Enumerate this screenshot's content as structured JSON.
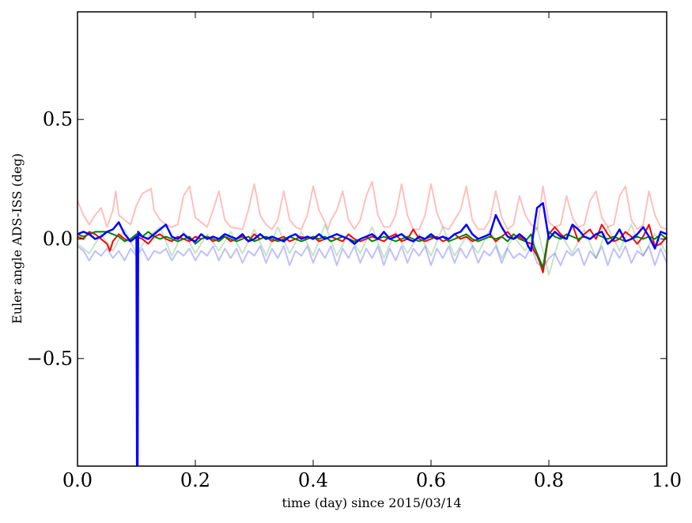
{
  "chart_data": {
    "type": "line",
    "xlabel": "time (day) since 2015/03/14",
    "ylabel": "Euler angle ADS-ISS (deg)",
    "xlim": [
      0.0,
      1.0
    ],
    "ylim": [
      -0.95,
      0.95
    ],
    "x_ticks": [
      "0.0",
      "0.2",
      "0.4",
      "0.6",
      "0.8",
      "1.0"
    ],
    "y_ticks": [
      "−0.5",
      "0.0",
      "0.5"
    ],
    "x_tick_values": [
      0.0,
      0.2,
      0.4,
      0.6,
      0.8,
      1.0
    ],
    "y_tick_values": [
      -0.5,
      0.0,
      0.5
    ],
    "grid": false,
    "series": [
      {
        "color": "#ff0000",
        "opacity": 0.25,
        "linewidth": 2,
        "x": [
          0.0,
          0.01,
          0.02,
          0.03,
          0.04,
          0.05,
          0.06,
          0.065,
          0.07,
          0.08,
          0.09,
          0.1,
          0.11,
          0.125,
          0.13,
          0.14,
          0.15,
          0.16,
          0.17,
          0.18,
          0.19,
          0.2,
          0.21,
          0.22,
          0.23,
          0.24,
          0.25,
          0.26,
          0.28,
          0.29,
          0.3,
          0.31,
          0.32,
          0.33,
          0.34,
          0.35,
          0.36,
          0.37,
          0.38,
          0.39,
          0.4,
          0.41,
          0.42,
          0.425,
          0.43,
          0.44,
          0.45,
          0.46,
          0.47,
          0.48,
          0.49,
          0.5,
          0.51,
          0.52,
          0.53,
          0.54,
          0.55,
          0.56,
          0.57,
          0.58,
          0.59,
          0.6,
          0.61,
          0.62,
          0.63,
          0.64,
          0.65,
          0.66,
          0.67,
          0.68,
          0.69,
          0.7,
          0.71,
          0.72,
          0.73,
          0.74,
          0.75,
          0.76,
          0.77,
          0.78,
          0.79,
          0.8,
          0.81,
          0.82,
          0.83,
          0.84,
          0.85,
          0.86,
          0.87,
          0.88,
          0.89,
          0.9,
          0.91,
          0.92,
          0.93,
          0.94,
          0.95,
          0.96,
          0.97,
          0.98,
          0.99,
          1.0
        ],
        "y": [
          0.16,
          0.1,
          0.06,
          0.1,
          0.13,
          0.05,
          0.12,
          0.2,
          0.1,
          0.08,
          0.06,
          0.14,
          0.19,
          0.21,
          0.12,
          0.08,
          0.06,
          0.05,
          0.06,
          0.18,
          0.22,
          0.09,
          0.07,
          0.05,
          0.12,
          0.2,
          0.08,
          0.05,
          0.04,
          0.12,
          0.23,
          0.1,
          0.06,
          0.04,
          0.08,
          0.2,
          0.08,
          0.05,
          0.04,
          0.1,
          0.22,
          0.12,
          0.07,
          0.04,
          0.08,
          0.12,
          0.2,
          0.08,
          0.04,
          0.08,
          0.18,
          0.24,
          0.1,
          0.05,
          0.05,
          0.1,
          0.23,
          0.1,
          0.04,
          0.04,
          0.1,
          0.23,
          0.11,
          0.05,
          0.04,
          0.08,
          0.12,
          0.22,
          0.08,
          0.04,
          0.04,
          0.08,
          0.2,
          0.09,
          0.04,
          0.06,
          0.18,
          0.1,
          0.06,
          0.04,
          0.22,
          0.07,
          0.05,
          0.06,
          0.18,
          0.09,
          0.05,
          0.06,
          0.16,
          0.2,
          0.09,
          0.05,
          0.06,
          0.18,
          0.22,
          0.08,
          0.04,
          0.06,
          0.2,
          0.1,
          0.05,
          0.04
        ]
      },
      {
        "color": "#008000",
        "opacity": 0.22,
        "linewidth": 2,
        "x": [
          0.0,
          0.02,
          0.04,
          0.06,
          0.08,
          0.1,
          0.12,
          0.14,
          0.16,
          0.18,
          0.2,
          0.22,
          0.24,
          0.26,
          0.28,
          0.3,
          0.32,
          0.34,
          0.36,
          0.38,
          0.4,
          0.42,
          0.44,
          0.46,
          0.48,
          0.5,
          0.52,
          0.54,
          0.56,
          0.58,
          0.6,
          0.62,
          0.64,
          0.66,
          0.68,
          0.7,
          0.72,
          0.74,
          0.76,
          0.78,
          0.8,
          0.82,
          0.84,
          0.86,
          0.88,
          0.9,
          0.92,
          0.94,
          0.96,
          0.98,
          1.0
        ],
        "y": [
          -0.02,
          -0.06,
          0.02,
          -0.05,
          0.04,
          -0.06,
          0.01,
          0.05,
          -0.07,
          0.03,
          -0.06,
          0.02,
          -0.05,
          0.03,
          -0.06,
          0.04,
          -0.07,
          0.05,
          -0.06,
          0.03,
          -0.07,
          0.06,
          -0.07,
          0.02,
          -0.06,
          0.05,
          -0.08,
          0.03,
          -0.06,
          0.02,
          -0.07,
          0.05,
          -0.07,
          0.01,
          -0.06,
          0.04,
          -0.08,
          0.01,
          -0.05,
          0.05,
          -0.15,
          0.02,
          -0.06,
          0.04,
          -0.08,
          0.05,
          -0.05,
          0.06,
          -0.07,
          0.02,
          -0.06
        ]
      },
      {
        "color": "#0000ff",
        "opacity": 0.25,
        "linewidth": 2,
        "x": [
          0.0,
          0.01,
          0.02,
          0.03,
          0.04,
          0.05,
          0.06,
          0.07,
          0.08,
          0.09,
          0.1,
          0.11,
          0.12,
          0.13,
          0.14,
          0.15,
          0.16,
          0.17,
          0.18,
          0.19,
          0.2,
          0.21,
          0.22,
          0.23,
          0.24,
          0.25,
          0.26,
          0.27,
          0.28,
          0.29,
          0.3,
          0.31,
          0.32,
          0.33,
          0.34,
          0.35,
          0.36,
          0.37,
          0.38,
          0.39,
          0.4,
          0.41,
          0.42,
          0.43,
          0.44,
          0.45,
          0.46,
          0.47,
          0.48,
          0.49,
          0.5,
          0.51,
          0.52,
          0.53,
          0.54,
          0.55,
          0.56,
          0.57,
          0.58,
          0.59,
          0.6,
          0.61,
          0.62,
          0.63,
          0.64,
          0.65,
          0.66,
          0.67,
          0.68,
          0.69,
          0.7,
          0.71,
          0.72,
          0.73,
          0.74,
          0.75,
          0.76,
          0.77,
          0.78,
          0.79,
          0.8,
          0.81,
          0.82,
          0.83,
          0.84,
          0.85,
          0.86,
          0.87,
          0.88,
          0.89,
          0.9,
          0.91,
          0.92,
          0.93,
          0.94,
          0.95,
          0.96,
          0.97,
          0.98,
          0.99,
          1.0
        ],
        "y": [
          -0.03,
          -0.05,
          -0.09,
          -0.05,
          -0.07,
          -0.04,
          -0.08,
          -0.05,
          -0.09,
          -0.04,
          -0.07,
          -0.04,
          -0.09,
          -0.05,
          -0.06,
          -0.04,
          -0.09,
          -0.05,
          -0.07,
          -0.04,
          -0.09,
          -0.05,
          -0.07,
          -0.03,
          -0.09,
          -0.04,
          -0.08,
          -0.04,
          -0.1,
          -0.05,
          -0.07,
          -0.03,
          -0.1,
          -0.04,
          -0.08,
          -0.03,
          -0.11,
          -0.05,
          -0.07,
          -0.03,
          -0.1,
          -0.04,
          -0.08,
          -0.03,
          -0.11,
          -0.04,
          -0.08,
          -0.03,
          -0.1,
          -0.04,
          -0.08,
          -0.03,
          -0.11,
          -0.04,
          -0.09,
          -0.03,
          -0.1,
          -0.04,
          -0.07,
          -0.03,
          -0.11,
          -0.04,
          -0.08,
          -0.03,
          -0.1,
          -0.04,
          -0.08,
          -0.03,
          -0.1,
          -0.05,
          -0.07,
          -0.03,
          -0.1,
          -0.04,
          -0.08,
          -0.06,
          -0.08,
          -0.03,
          -0.1,
          -0.12,
          -0.08,
          -0.06,
          -0.11,
          -0.05,
          -0.07,
          -0.04,
          -0.11,
          -0.05,
          -0.08,
          -0.03,
          -0.11,
          -0.04,
          -0.08,
          -0.03,
          -0.1,
          -0.05,
          -0.07,
          -0.03,
          -0.11,
          -0.04,
          -0.1
        ]
      },
      {
        "color": "#ff0000",
        "opacity": 1.0,
        "linewidth": 2,
        "x": [
          0.0,
          0.01,
          0.02,
          0.03,
          0.04,
          0.05,
          0.055,
          0.06,
          0.07,
          0.08,
          0.09,
          0.1,
          0.11,
          0.12,
          0.13,
          0.14,
          0.15,
          0.16,
          0.17,
          0.18,
          0.19,
          0.2,
          0.21,
          0.22,
          0.23,
          0.24,
          0.25,
          0.26,
          0.27,
          0.28,
          0.29,
          0.3,
          0.31,
          0.32,
          0.33,
          0.34,
          0.35,
          0.36,
          0.37,
          0.38,
          0.39,
          0.4,
          0.41,
          0.42,
          0.43,
          0.44,
          0.45,
          0.46,
          0.47,
          0.48,
          0.49,
          0.5,
          0.51,
          0.52,
          0.53,
          0.54,
          0.55,
          0.56,
          0.57,
          0.58,
          0.59,
          0.6,
          0.61,
          0.62,
          0.63,
          0.64,
          0.65,
          0.66,
          0.67,
          0.68,
          0.69,
          0.7,
          0.71,
          0.72,
          0.73,
          0.74,
          0.75,
          0.76,
          0.77,
          0.775,
          0.78,
          0.785,
          0.79,
          0.8,
          0.81,
          0.82,
          0.83,
          0.84,
          0.85,
          0.86,
          0.87,
          0.88,
          0.89,
          0.9,
          0.91,
          0.92,
          0.93,
          0.94,
          0.95,
          0.96,
          0.97,
          0.98,
          0.99,
          1.0
        ],
        "y": [
          0.01,
          0.0,
          0.03,
          0.02,
          0.0,
          -0.02,
          -0.05,
          -0.01,
          0.02,
          0.0,
          -0.01,
          0.01,
          0.0,
          -0.02,
          0.01,
          0.02,
          0.0,
          -0.01,
          0.01,
          0.0,
          -0.01,
          0.01,
          0.0,
          0.01,
          -0.01,
          0.0,
          0.01,
          -0.01,
          0.0,
          0.01,
          -0.01,
          0.02,
          0.0,
          0.01,
          -0.01,
          0.0,
          0.01,
          -0.01,
          0.0,
          0.01,
          0.0,
          0.01,
          -0.01,
          0.0,
          0.01,
          0.0,
          -0.01,
          0.02,
          0.0,
          -0.01,
          0.0,
          0.01,
          0.0,
          -0.01,
          0.01,
          0.02,
          -0.01,
          0.0,
          0.04,
          0.0,
          -0.01,
          0.0,
          0.01,
          -0.01,
          0.0,
          0.02,
          0.0,
          0.01,
          -0.01,
          0.0,
          0.01,
          0.02,
          -0.01,
          0.01,
          0.03,
          0.0,
          0.01,
          -0.01,
          -0.02,
          -0.05,
          -0.07,
          -0.1,
          -0.14,
          0.02,
          0.05,
          0.02,
          0.0,
          0.06,
          -0.01,
          0.02,
          0.04,
          0.0,
          0.06,
          0.02,
          -0.01,
          0.0,
          0.03,
          0.01,
          -0.02,
          0.01,
          0.06,
          -0.03,
          -0.02,
          0.01
        ]
      },
      {
        "color": "#008000",
        "opacity": 1.0,
        "linewidth": 2,
        "x": [
          0.0,
          0.01,
          0.02,
          0.03,
          0.04,
          0.05,
          0.06,
          0.07,
          0.08,
          0.09,
          0.1,
          0.11,
          0.12,
          0.13,
          0.14,
          0.15,
          0.16,
          0.17,
          0.18,
          0.19,
          0.2,
          0.21,
          0.22,
          0.23,
          0.24,
          0.25,
          0.26,
          0.27,
          0.28,
          0.29,
          0.3,
          0.31,
          0.32,
          0.33,
          0.34,
          0.35,
          0.36,
          0.37,
          0.38,
          0.39,
          0.4,
          0.41,
          0.42,
          0.43,
          0.44,
          0.45,
          0.46,
          0.47,
          0.48,
          0.49,
          0.5,
          0.51,
          0.52,
          0.53,
          0.54,
          0.55,
          0.56,
          0.57,
          0.58,
          0.59,
          0.6,
          0.61,
          0.62,
          0.63,
          0.64,
          0.65,
          0.66,
          0.67,
          0.68,
          0.69,
          0.7,
          0.71,
          0.72,
          0.73,
          0.74,
          0.75,
          0.76,
          0.77,
          0.775,
          0.78,
          0.785,
          0.79,
          0.8,
          0.81,
          0.82,
          0.83,
          0.84,
          0.85,
          0.86,
          0.87,
          0.88,
          0.89,
          0.9,
          0.91,
          0.92,
          0.93,
          0.94,
          0.95,
          0.96,
          0.97,
          0.98,
          0.99,
          1.0
        ],
        "y": [
          0.02,
          0.01,
          0.02,
          0.03,
          0.03,
          0.03,
          0.02,
          0.01,
          -0.01,
          0.0,
          0.02,
          0.01,
          0.03,
          0.01,
          0.0,
          0.01,
          0.0,
          -0.01,
          0.0,
          0.01,
          -0.02,
          0.0,
          0.01,
          0.0,
          -0.01,
          0.01,
          0.0,
          -0.01,
          0.0,
          0.01,
          -0.01,
          0.0,
          0.01,
          0.0,
          -0.01,
          0.0,
          0.01,
          0.0,
          -0.01,
          0.0,
          0.01,
          0.0,
          0.01,
          -0.01,
          0.0,
          0.01,
          0.0,
          -0.01,
          0.0,
          0.01,
          -0.01,
          0.0,
          0.01,
          0.0,
          -0.01,
          0.0,
          0.01,
          0.0,
          -0.01,
          0.0,
          0.01,
          0.0,
          0.01,
          -0.01,
          0.0,
          0.01,
          0.02,
          0.0,
          -0.01,
          0.0,
          0.01,
          0.0,
          0.01,
          -0.01,
          0.02,
          0.0,
          -0.01,
          0.02,
          -0.03,
          -0.06,
          -0.09,
          -0.12,
          0.03,
          0.01,
          0.0,
          0.02,
          0.01,
          0.0,
          0.01,
          0.0,
          0.02,
          0.01,
          0.0,
          0.01,
          0.0,
          -0.01,
          0.0,
          0.01,
          0.0,
          0.01,
          0.0,
          0.02,
          0.0
        ]
      },
      {
        "color": "#0000ff",
        "opacity": 1.0,
        "linewidth": 2.5,
        "x": [
          0.0,
          0.01,
          0.02,
          0.03,
          0.04,
          0.05,
          0.06,
          0.07,
          0.08,
          0.09,
          0.1,
          0.101,
          0.102,
          0.103,
          0.11,
          0.12,
          0.13,
          0.14,
          0.15,
          0.16,
          0.17,
          0.18,
          0.19,
          0.2,
          0.21,
          0.22,
          0.23,
          0.24,
          0.25,
          0.26,
          0.27,
          0.28,
          0.29,
          0.3,
          0.31,
          0.32,
          0.33,
          0.34,
          0.35,
          0.36,
          0.37,
          0.38,
          0.39,
          0.4,
          0.41,
          0.42,
          0.43,
          0.44,
          0.45,
          0.46,
          0.47,
          0.48,
          0.49,
          0.5,
          0.51,
          0.52,
          0.53,
          0.54,
          0.55,
          0.56,
          0.57,
          0.58,
          0.59,
          0.6,
          0.61,
          0.62,
          0.63,
          0.64,
          0.65,
          0.66,
          0.67,
          0.68,
          0.69,
          0.7,
          0.71,
          0.72,
          0.73,
          0.74,
          0.75,
          0.76,
          0.765,
          0.77,
          0.775,
          0.78,
          0.785,
          0.79,
          0.8,
          0.81,
          0.82,
          0.83,
          0.84,
          0.85,
          0.86,
          0.87,
          0.88,
          0.89,
          0.9,
          0.91,
          0.92,
          0.93,
          0.94,
          0.95,
          0.96,
          0.97,
          0.98,
          0.99,
          1.0
        ],
        "y": [
          0.02,
          0.03,
          0.02,
          0.0,
          0.01,
          0.03,
          0.04,
          0.07,
          0.02,
          -0.01,
          0.01,
          -0.95,
          -0.95,
          0.03,
          0.01,
          0.0,
          0.02,
          0.04,
          0.06,
          0.01,
          0.0,
          0.02,
          0.0,
          -0.01,
          0.02,
          0.0,
          0.01,
          0.0,
          0.02,
          0.01,
          0.0,
          0.02,
          -0.01,
          0.0,
          0.02,
          0.0,
          0.01,
          0.0,
          -0.01,
          0.01,
          0.02,
          0.0,
          0.01,
          0.0,
          0.02,
          0.0,
          0.01,
          0.02,
          0.01,
          0.0,
          -0.02,
          0.0,
          0.01,
          0.02,
          0.0,
          0.03,
          0.0,
          0.01,
          0.02,
          0.0,
          -0.01,
          0.01,
          0.0,
          0.02,
          0.0,
          0.01,
          0.0,
          0.02,
          0.03,
          0.06,
          0.02,
          0.0,
          0.01,
          0.02,
          0.1,
          0.05,
          0.01,
          0.0,
          0.02,
          0.0,
          -0.03,
          -0.05,
          0.05,
          0.13,
          0.14,
          0.15,
          0.0,
          0.03,
          0.01,
          0.0,
          0.06,
          0.04,
          0.01,
          0.0,
          0.02,
          0.03,
          -0.02,
          0.0,
          0.04,
          -0.01,
          0.0,
          0.02,
          0.05,
          0.01,
          -0.04,
          0.03,
          0.02
        ]
      }
    ]
  }
}
